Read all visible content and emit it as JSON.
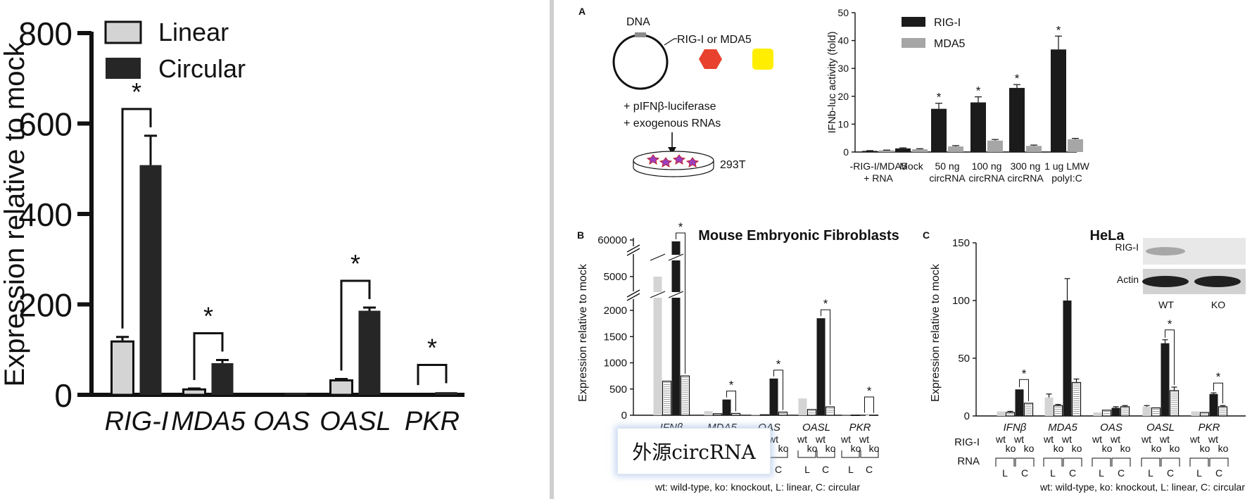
{
  "colors": {
    "black": "#1b1b1b",
    "dark": "#262626",
    "light": "#d4d4d4",
    "mid": "#a6a6a6",
    "red": "#e8412e",
    "yellow": "#ffee00"
  },
  "chart_data": [
    {
      "panel": "left",
      "type": "bar",
      "ylabel": "Expression relative to mock",
      "ylim": [
        0,
        800
      ],
      "yticks": [
        0,
        200,
        400,
        600,
        800
      ],
      "categories": [
        "RIG-I",
        "MDA5",
        "OAS",
        "OASL",
        "PKR"
      ],
      "series": [
        {
          "name": "Linear",
          "values": [
            118,
            12,
            1,
            32,
            2
          ],
          "errors": [
            10,
            2,
            0,
            3,
            1
          ]
        },
        {
          "name": "Circular",
          "values": [
            508,
            70,
            4,
            186,
            6
          ],
          "errors": [
            65,
            7,
            1,
            7,
            1
          ]
        }
      ],
      "significance": [
        "*",
        "*",
        "",
        "*",
        "*"
      ]
    },
    {
      "panel": "A",
      "type": "bar",
      "ylabel": "IFNb-luc activity (fold)",
      "ylim": [
        0,
        50
      ],
      "yticks": [
        0,
        10,
        20,
        30,
        40,
        50
      ],
      "categories": [
        [
          "-RIG-I/MDA5",
          "+ RNA"
        ],
        [
          "Mock"
        ],
        [
          "50 ng",
          "circRNA"
        ],
        [
          "100 ng",
          "circRNA"
        ],
        [
          "300 ng",
          "circRNA"
        ],
        [
          "1 ug LMW",
          "polyI:C"
        ]
      ],
      "series": [
        {
          "name": "RIG-I",
          "values": [
            0.4,
            1.3,
            15.5,
            17.8,
            23.0,
            36.8
          ],
          "errors": [
            0.1,
            0.2,
            2.0,
            2.0,
            1.2,
            4.8
          ]
        },
        {
          "name": "MDA5",
          "values": [
            0.6,
            1.0,
            2.0,
            4.1,
            2.2,
            4.6
          ],
          "errors": [
            0.1,
            0.2,
            0.3,
            0.4,
            0.3,
            0.3
          ]
        }
      ],
      "significance": [
        "",
        "",
        "*",
        "*",
        "*",
        "*"
      ]
    },
    {
      "panel": "B",
      "type": "bar",
      "title": "Mouse Embryonic Fibroblasts",
      "ylabel": "Expression relative to mock",
      "yticks": [
        0,
        500,
        1000,
        1500,
        2000,
        5000,
        60000
      ],
      "categories": [
        "IFNβ",
        "MDA5",
        "OAS",
        "OASL",
        "PKR"
      ],
      "series": [
        {
          "name": "wt L",
          "values": [
            5000,
            80,
            20,
            320,
            5
          ]
        },
        {
          "name": "ko L",
          "values": [
            650,
            30,
            10,
            110,
            2
          ]
        },
        {
          "name": "wt C",
          "values": [
            56000,
            300,
            700,
            1850,
            8
          ]
        },
        {
          "name": "ko C",
          "values": [
            750,
            35,
            60,
            160,
            3
          ]
        }
      ],
      "significance": [
        "*",
        "*",
        "*",
        "*",
        "*"
      ],
      "row_labels": [
        "RIG-I",
        "RNA"
      ],
      "group_labels": [
        "wt",
        "wt",
        "ko",
        "ko",
        "L",
        "C"
      ],
      "footnote": "wt: wild-type, ko: knockout, L: linear, C: circular"
    },
    {
      "panel": "C",
      "type": "bar",
      "title": "HeLa",
      "ylabel": "Expression relative to mock",
      "ylim": [
        0,
        150
      ],
      "yticks": [
        0,
        50,
        100,
        150
      ],
      "categories": [
        "IFNβ",
        "MDA5",
        "OAS",
        "OASL",
        "PKR"
      ],
      "series": [
        {
          "name": "wt L",
          "values": [
            4,
            16,
            3,
            8,
            4
          ]
        },
        {
          "name": "ko L",
          "values": [
            3,
            9,
            5,
            7,
            3
          ]
        },
        {
          "name": "wt C",
          "values": [
            23,
            100,
            7,
            63,
            19
          ]
        },
        {
          "name": "ko C",
          "values": [
            11,
            29,
            8,
            22,
            8
          ]
        }
      ],
      "significance": [
        "*",
        "",
        "",
        "*",
        "*"
      ],
      "row_labels": [
        "RIG-I",
        "RNA"
      ],
      "group_labels": [
        "wt",
        "wt",
        "ko",
        "ko",
        "L",
        "C"
      ],
      "footnote": "wt: wild-type, ko: knockout, L: linear, C: circular",
      "blot": {
        "rows": [
          "RIG-I",
          "Actin"
        ],
        "lanes": [
          "WT",
          "KO"
        ]
      }
    }
  ],
  "panel_letters": [
    "A",
    "B",
    "C"
  ],
  "schematic": {
    "dna": "DNA",
    "construct": "RIG-I or MDA5",
    "line1": "+ pIFNβ-luciferase",
    "line2": "+ exogenous RNAs",
    "cells": "293T"
  },
  "watermark": "外源circRNA"
}
